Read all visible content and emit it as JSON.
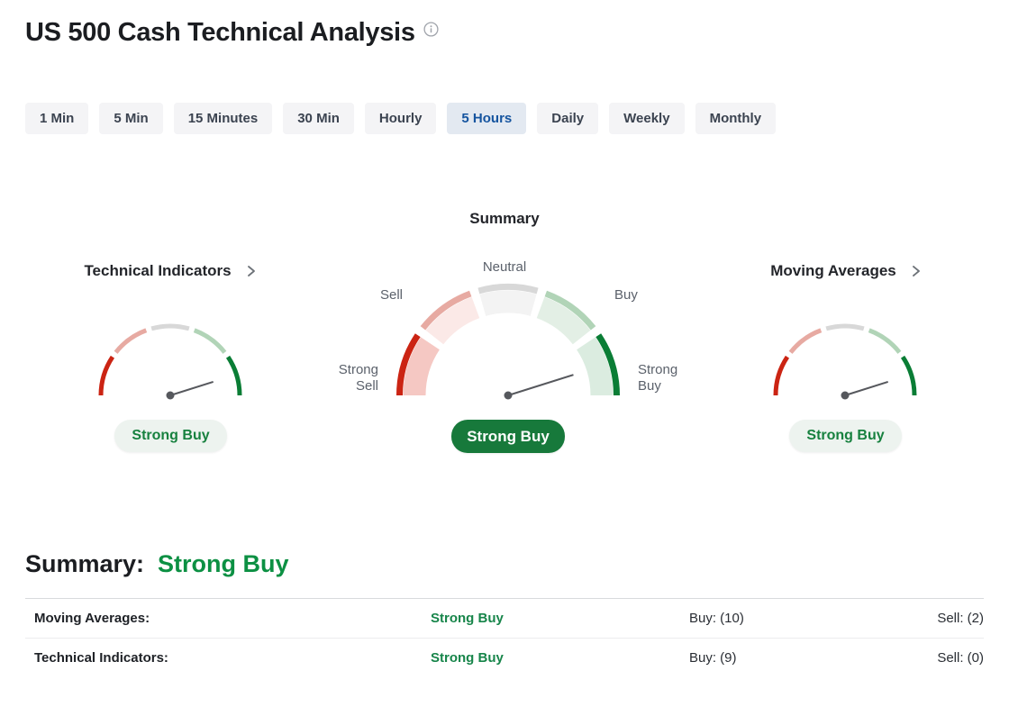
{
  "header": {
    "title": "US 500 Cash Technical Analysis"
  },
  "tabs": {
    "items": [
      {
        "label": "1 Min",
        "selected": false
      },
      {
        "label": "5 Min",
        "selected": false
      },
      {
        "label": "15 Minutes",
        "selected": false
      },
      {
        "label": "30 Min",
        "selected": false
      },
      {
        "label": "Hourly",
        "selected": false
      },
      {
        "label": "5 Hours",
        "selected": true
      },
      {
        "label": "Daily",
        "selected": false
      },
      {
        "label": "Weekly",
        "selected": false
      },
      {
        "label": "Monthly",
        "selected": false
      }
    ]
  },
  "gauges": {
    "summary_title": "Summary",
    "panels": [
      {
        "title": "Technical Indicators",
        "signal": "Strong Buy"
      },
      {
        "signal": "Strong Buy"
      },
      {
        "title": "Moving Averages",
        "signal": "Strong Buy"
      }
    ],
    "scale_labels": {
      "neutral": "Neutral",
      "sell": "Sell",
      "buy": "Buy",
      "strong_sell": [
        "Strong",
        "Sell"
      ],
      "strong_buy": [
        "Strong",
        "Buy"
      ]
    },
    "needle_angle_deg": 17.5,
    "needle_color": "#56585d",
    "segments": [
      {
        "name": "strong-sell",
        "arc": "#cb2413",
        "band": "#f5c8c3"
      },
      {
        "name": "sell",
        "arc": "#e7aaa2",
        "band": "#fbe9e7"
      },
      {
        "name": "neutral",
        "arc": "#d8d8d8",
        "band": "#f3f3f3"
      },
      {
        "name": "buy",
        "arc": "#b1d4b7",
        "band": "#e3efe5"
      },
      {
        "name": "strong-buy",
        "arc": "#0a7d35",
        "band": "#dbece0"
      }
    ]
  },
  "bottom": {
    "heading_label": "Summary:",
    "heading_value": "Strong Buy",
    "rows": [
      {
        "label": "Moving Averages:",
        "signal": "Strong Buy",
        "buy": "Buy: (10)",
        "sell": "Sell: (2)"
      },
      {
        "label": "Technical Indicators:",
        "signal": "Strong Buy",
        "buy": "Buy: (9)",
        "sell": "Sell: (0)"
      }
    ]
  },
  "colors": {
    "accent_blue": "#15549f",
    "tab_selected_bg": "#e3e9f1",
    "green_heading": "#0c9043",
    "green_table": "#17854a",
    "pill_dark_bg": "#17793b",
    "pill_light_bg": "#edf3ef",
    "strong_sell_red": "#cb2413",
    "strong_buy_green": "#0a7d35"
  }
}
